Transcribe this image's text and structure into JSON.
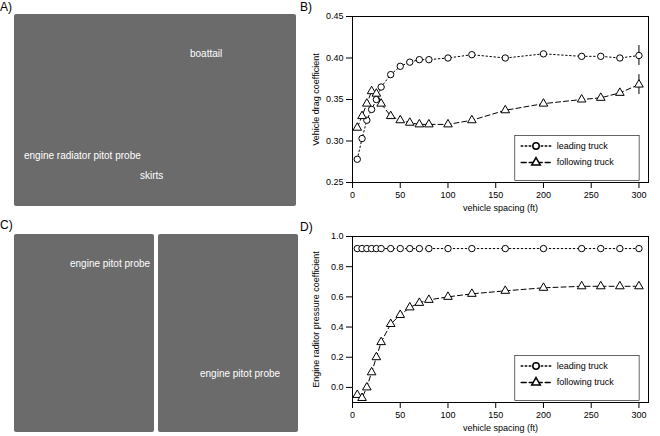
{
  "chart_data": [
    {
      "type": "line",
      "title": "B)",
      "x_label": "vehicle spacing (ft)",
      "y_label": "Vehicle drag coefficient",
      "x": [
        5,
        10,
        15,
        20,
        25,
        30,
        40,
        50,
        60,
        70,
        80,
        100,
        125,
        160,
        200,
        240,
        260,
        280,
        300
      ],
      "series": [
        {
          "name": "leading truck",
          "color": "#000000",
          "marker": "circle",
          "line_style": "dotted",
          "values": [
            0.278,
            0.303,
            0.325,
            0.338,
            0.35,
            0.365,
            0.38,
            0.39,
            0.395,
            0.398,
            0.398,
            0.4,
            0.404,
            0.4,
            0.405,
            0.402,
            0.402,
            0.4,
            0.403
          ],
          "errors": [
            null,
            null,
            null,
            null,
            null,
            null,
            null,
            null,
            null,
            null,
            null,
            null,
            null,
            null,
            null,
            null,
            null,
            null,
            0.012
          ]
        },
        {
          "name": "following truck",
          "color": "#000000",
          "marker": "triangle",
          "line_style": "dashed",
          "values": [
            0.316,
            0.33,
            0.345,
            0.36,
            0.357,
            0.345,
            0.33,
            0.325,
            0.322,
            0.32,
            0.32,
            0.32,
            0.325,
            0.337,
            0.345,
            0.35,
            0.352,
            0.358,
            0.368
          ],
          "errors": [
            null,
            null,
            null,
            null,
            null,
            null,
            null,
            null,
            null,
            null,
            null,
            null,
            null,
            null,
            null,
            null,
            null,
            null,
            0.012
          ]
        }
      ],
      "xlim": [
        0,
        310
      ],
      "xticks": [
        0,
        50,
        100,
        150,
        200,
        250,
        300
      ],
      "ylim": [
        0.25,
        0.45
      ],
      "yticks": [
        0.25,
        {
          "value": 0.3,
          "label": "0.30"
        },
        0.35,
        {
          "value": 0.4,
          "label": "0.40"
        },
        0.45
      ],
      "grid": false,
      "legend": "lower right"
    },
    {
      "type": "line",
      "title": "D)",
      "x_label": "vehicle spacing (ft)",
      "y_label": "Engine raditor pressure coefficient",
      "x": [
        5,
        10,
        15,
        20,
        25,
        30,
        40,
        50,
        60,
        70,
        80,
        100,
        125,
        160,
        200,
        240,
        260,
        280,
        300
      ],
      "series": [
        {
          "name": "leading truck",
          "color": "#000000",
          "marker": "circle",
          "line_style": "dotted",
          "values": [
            0.92,
            0.92,
            0.92,
            0.92,
            0.92,
            0.92,
            0.92,
            0.92,
            0.92,
            0.92,
            0.92,
            0.92,
            0.92,
            0.92,
            0.92,
            0.92,
            0.92,
            0.92,
            0.92
          ]
        },
        {
          "name": "following truck",
          "color": "#000000",
          "marker": "triangle",
          "line_style": "dashed",
          "values": [
            -0.05,
            -0.07,
            0.0,
            0.1,
            0.2,
            0.3,
            0.42,
            0.48,
            0.53,
            0.56,
            0.58,
            0.6,
            0.62,
            0.64,
            0.66,
            0.67,
            0.67,
            0.67,
            0.67
          ]
        }
      ],
      "xlim": [
        0,
        310
      ],
      "xticks": [
        0,
        50,
        100,
        150,
        200,
        250,
        300
      ],
      "ylim": [
        -0.1,
        1.0
      ],
      "yticks": [
        {
          "value": 0,
          "label": "0.0"
        },
        0.2,
        0.4,
        0.6,
        0.8,
        {
          "value": 1,
          "label": "1.0"
        }
      ],
      "grid": false,
      "legend": "lower right"
    }
  ],
  "photos": [
    {
      "panel": "A)",
      "labels": [
        "boattail",
        "skirts",
        "engine radiator pitot probe"
      ]
    },
    {
      "panel": "C)",
      "labels": [
        "engine pitot probe",
        "engine pitot probe"
      ]
    }
  ]
}
